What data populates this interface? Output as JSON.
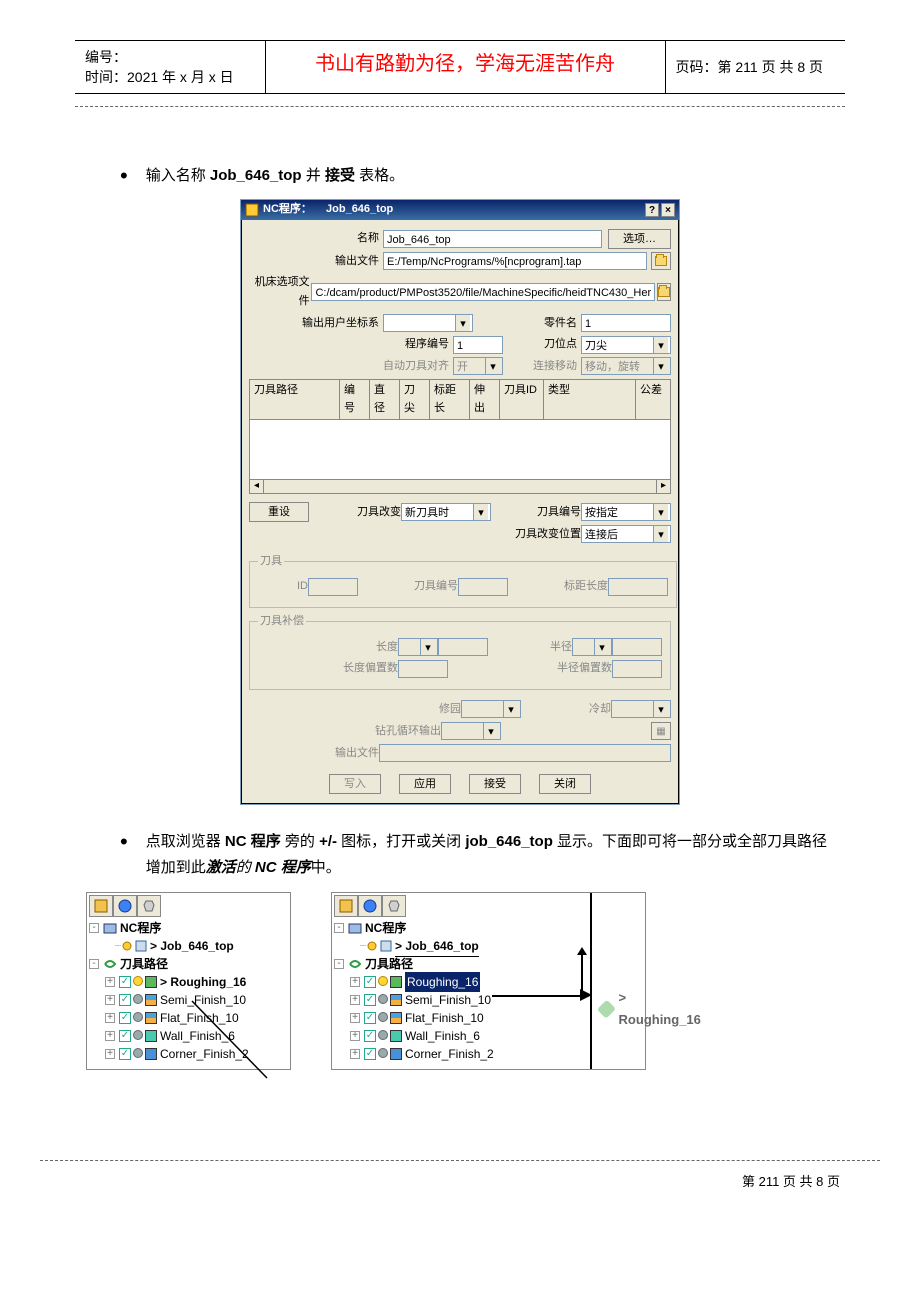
{
  "header": {
    "left_line1": "编号：",
    "left_line2": "时间：2021 年 x 月 x 日",
    "center": "书山有路勤为径，学海无涯苦作舟",
    "right": "页码：第 211 页  共 8 页"
  },
  "body": {
    "line1_a": "输入名称 ",
    "line1_b": "Job_646_top",
    "line1_c": "  并",
    "line1_d": "接受",
    "line1_e": "表格。",
    "line2_a": "点取浏览器 ",
    "line2_b": "NC 程序",
    "line2_c": "旁的  ",
    "line2_d": "+/-",
    "line2_e": "  图标，打开或关闭 ",
    "line2_f": "job_646_top",
    "line2_g": " 显示。下面即可将一部分或全部刀具路径增加到此",
    "line2_h": "激活",
    "line2_i": "的 ",
    "line2_j": "NC 程序",
    "line2_k": "中。"
  },
  "dialog": {
    "title_prefix": "NC程序：",
    "title_name": "Job_646_top",
    "help_btn": "?",
    "close_btn": "×",
    "labels": {
      "name": "名称",
      "output_file": "输出文件",
      "machine_file": "机床选项文件",
      "output_ucs": "输出用户坐标系",
      "part_name": "零件名",
      "prog_no": "程序编号",
      "tool_pos": "刀位点",
      "auto_align": "自动刀具对齐",
      "conn_move": "连接移动",
      "reset": "重设",
      "tool_change": "刀具改变",
      "tool_num": "刀具编号",
      "tool_change_pos": "刀具改变位置",
      "tool_group": "刀具",
      "tool_id": "ID",
      "tool_no": "刀具编号",
      "gauge_len": "标距长度",
      "tool_comp": "刀具补偿",
      "length": "长度",
      "radius": "半径",
      "len_off": "长度偏置数",
      "rad_off": "半径偏置数",
      "trim": "修园",
      "cooling": "冷却",
      "drill_out": "钻孔循环输出",
      "out_file2": "输出文件"
    },
    "values": {
      "name": "Job_646_top",
      "options_btn": "选项…",
      "output_file": "E:/Temp/NcPrograms/%[ncprogram].tap",
      "machine_file": "C:/dcam/product/PMPost3520/file/MachineSpecific/heidTNC430_Her",
      "output_ucs": "",
      "part_name": "1",
      "prog_no": "1",
      "tool_pos": "刀尖",
      "auto_align": "开",
      "conn_move": "移动，旋转",
      "tool_change": "新刀具时",
      "tool_num": "按指定",
      "tool_change_pos": "连接后"
    },
    "columns": [
      "刀具路径",
      "编号",
      "直径",
      "刀尖",
      "标距长",
      "伸出",
      "刀具ID",
      "类型",
      "公差"
    ],
    "buttons": {
      "write": "写入",
      "apply": "应用",
      "accept": "接受",
      "close": "关闭"
    }
  },
  "tree": {
    "nc_label": "NC程序",
    "job": "> Job_646_top",
    "tp_label": "刀具路径",
    "items": [
      {
        "name": "Roughing_16",
        "icon": "green"
      },
      {
        "name": "Semi_Finish_10",
        "icon": "stripe"
      },
      {
        "name": "Flat_Finish_10",
        "icon": "stripe"
      },
      {
        "name": "Wall_Finish_6",
        "icon": "teal"
      },
      {
        "name": "Corner_Finish_2",
        "icon": "bluebox"
      }
    ],
    "drag_label": "> Roughing_16"
  },
  "footer": "第  211  页  共  8  页"
}
